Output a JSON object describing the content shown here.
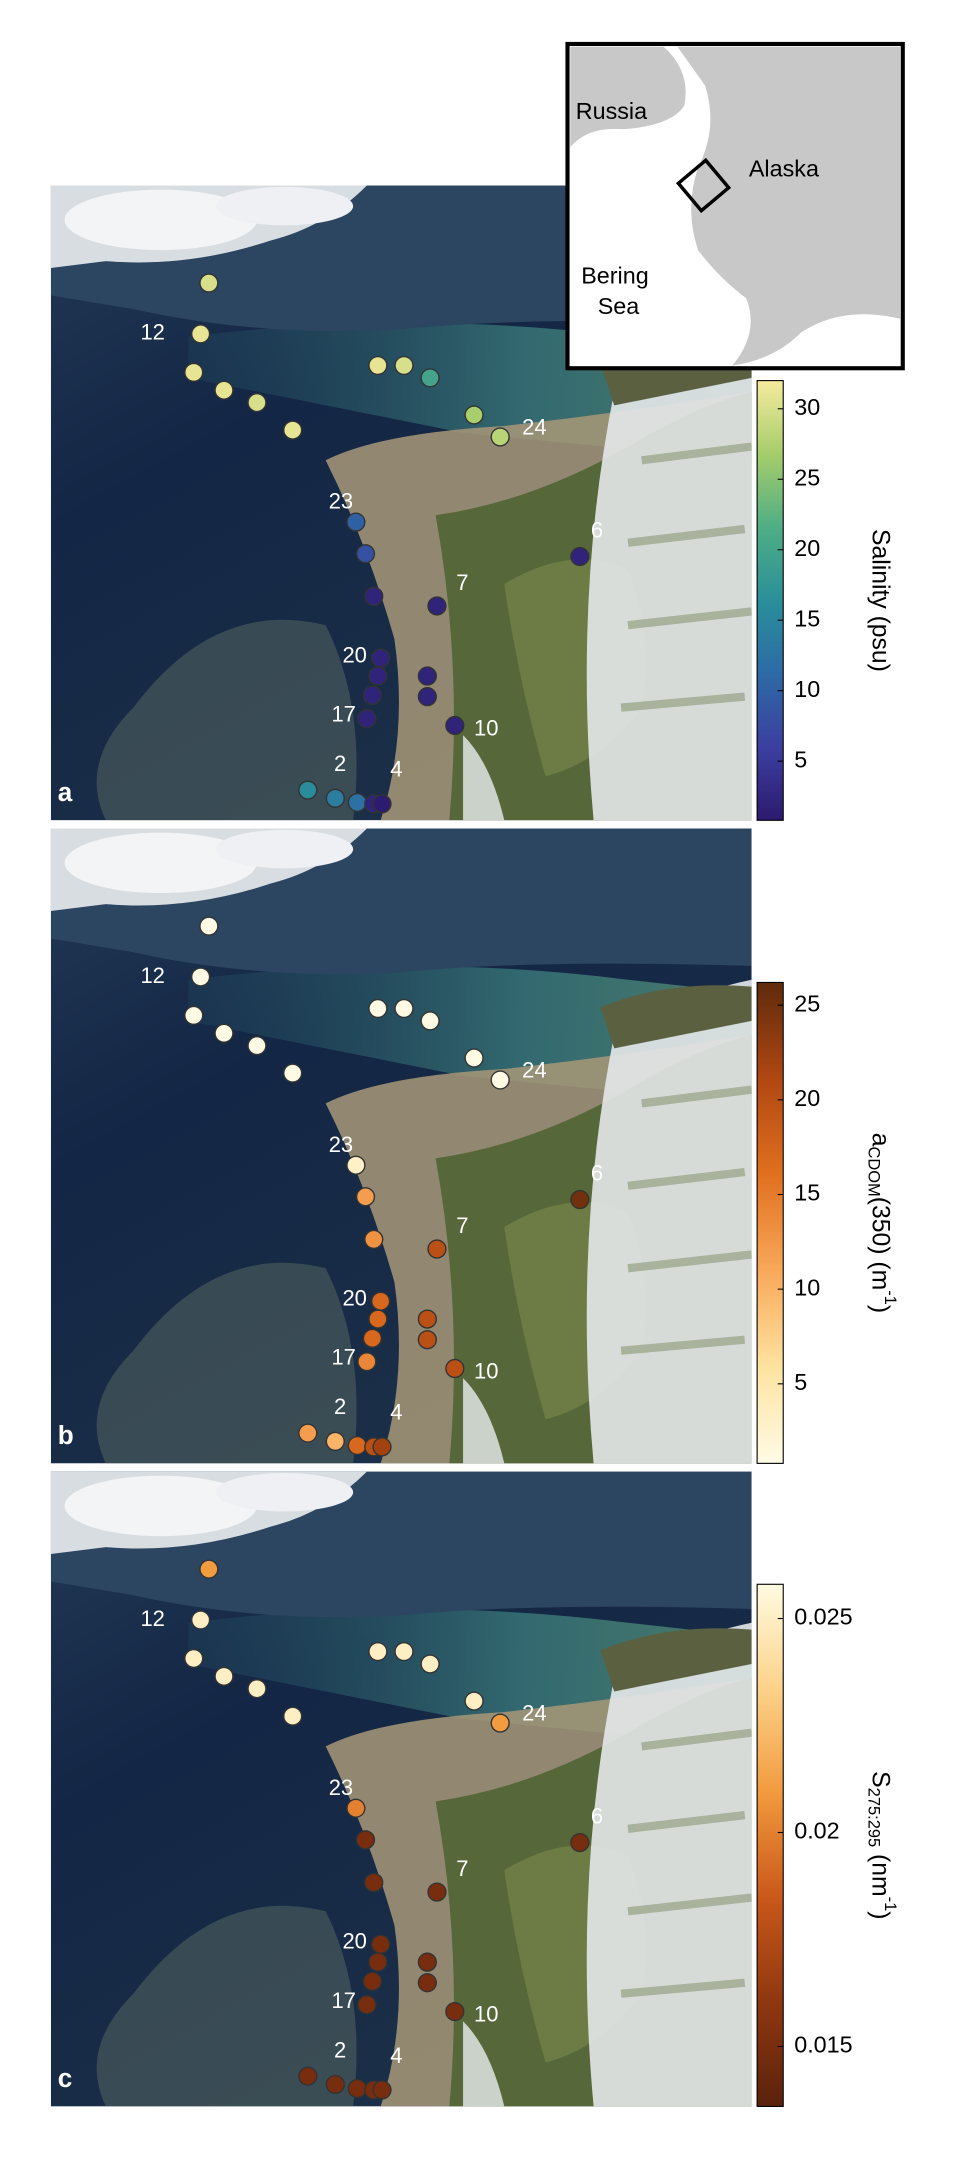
{
  "inset": {
    "russia": "Russia",
    "alaska": "Alaska",
    "bering": "Bering",
    "sea": "Sea"
  },
  "station_labels": [
    null,
    "12",
    null,
    null,
    null,
    null,
    null,
    null,
    null,
    null,
    "24",
    "23",
    null,
    null,
    "7",
    "6",
    null,
    "20",
    null,
    null,
    null,
    "17",
    "10",
    null,
    null,
    "2",
    null,
    "4"
  ],
  "chart_data": [
    {
      "type": "scatter",
      "panel_label": "a",
      "colorbar_label": [
        "Salinity (psu)"
      ],
      "values": [
        30,
        31,
        31,
        31,
        30,
        31,
        31,
        30,
        20,
        27,
        28,
        10,
        8,
        2,
        2,
        2,
        2,
        2,
        2,
        2,
        2,
        2,
        2,
        16,
        14,
        12,
        2,
        1
      ],
      "ylim": [
        0.8,
        32
      ],
      "yticks": [
        5,
        10,
        15,
        20,
        25,
        30
      ],
      "colors": [
        "#2c1a6e",
        "#3b3fa0",
        "#2d6aa5",
        "#2a8f9a",
        "#4fae84",
        "#a6cd6b",
        "#f6eb9e"
      ]
    },
    {
      "type": "scatter",
      "panel_label": "b",
      "colorbar_label": [
        "a",
        "CDOM",
        "(350) (m",
        "-1",
        ")"
      ],
      "values": [
        1,
        1,
        1,
        1,
        1,
        1,
        1,
        1,
        1,
        1,
        1,
        3,
        12,
        13,
        20,
        25,
        17,
        17,
        17,
        20,
        20,
        14,
        20,
        12,
        10,
        17,
        20,
        22
      ],
      "ylim": [
        0.8,
        26.2
      ],
      "yticks": [
        5,
        10,
        15,
        20,
        25
      ],
      "colors": [
        "#fffbe6",
        "#fde3a0",
        "#f9a85a",
        "#e0701f",
        "#b04712",
        "#5e2a0c"
      ]
    },
    {
      "type": "scatter",
      "panel_label": "c",
      "colorbar_label": [
        "S",
        "275:295",
        " (nm",
        "-1",
        ")"
      ],
      "values": [
        0.021,
        0.025,
        0.025,
        0.025,
        0.025,
        0.025,
        0.025,
        0.025,
        0.025,
        0.025,
        0.021,
        0.02,
        0.015,
        0.015,
        0.015,
        0.015,
        0.015,
        0.015,
        0.015,
        0.015,
        0.015,
        0.015,
        0.015,
        0.015,
        0.015,
        0.015,
        0.015,
        0.015
      ],
      "ylim": [
        0.0136,
        0.0258
      ],
      "yticks": [
        0.015,
        0.02,
        0.025
      ],
      "colors": [
        "#5a220c",
        "#8f3710",
        "#c9581a",
        "#f29a3e",
        "#fcd28a",
        "#fffbe0"
      ]
    }
  ]
}
